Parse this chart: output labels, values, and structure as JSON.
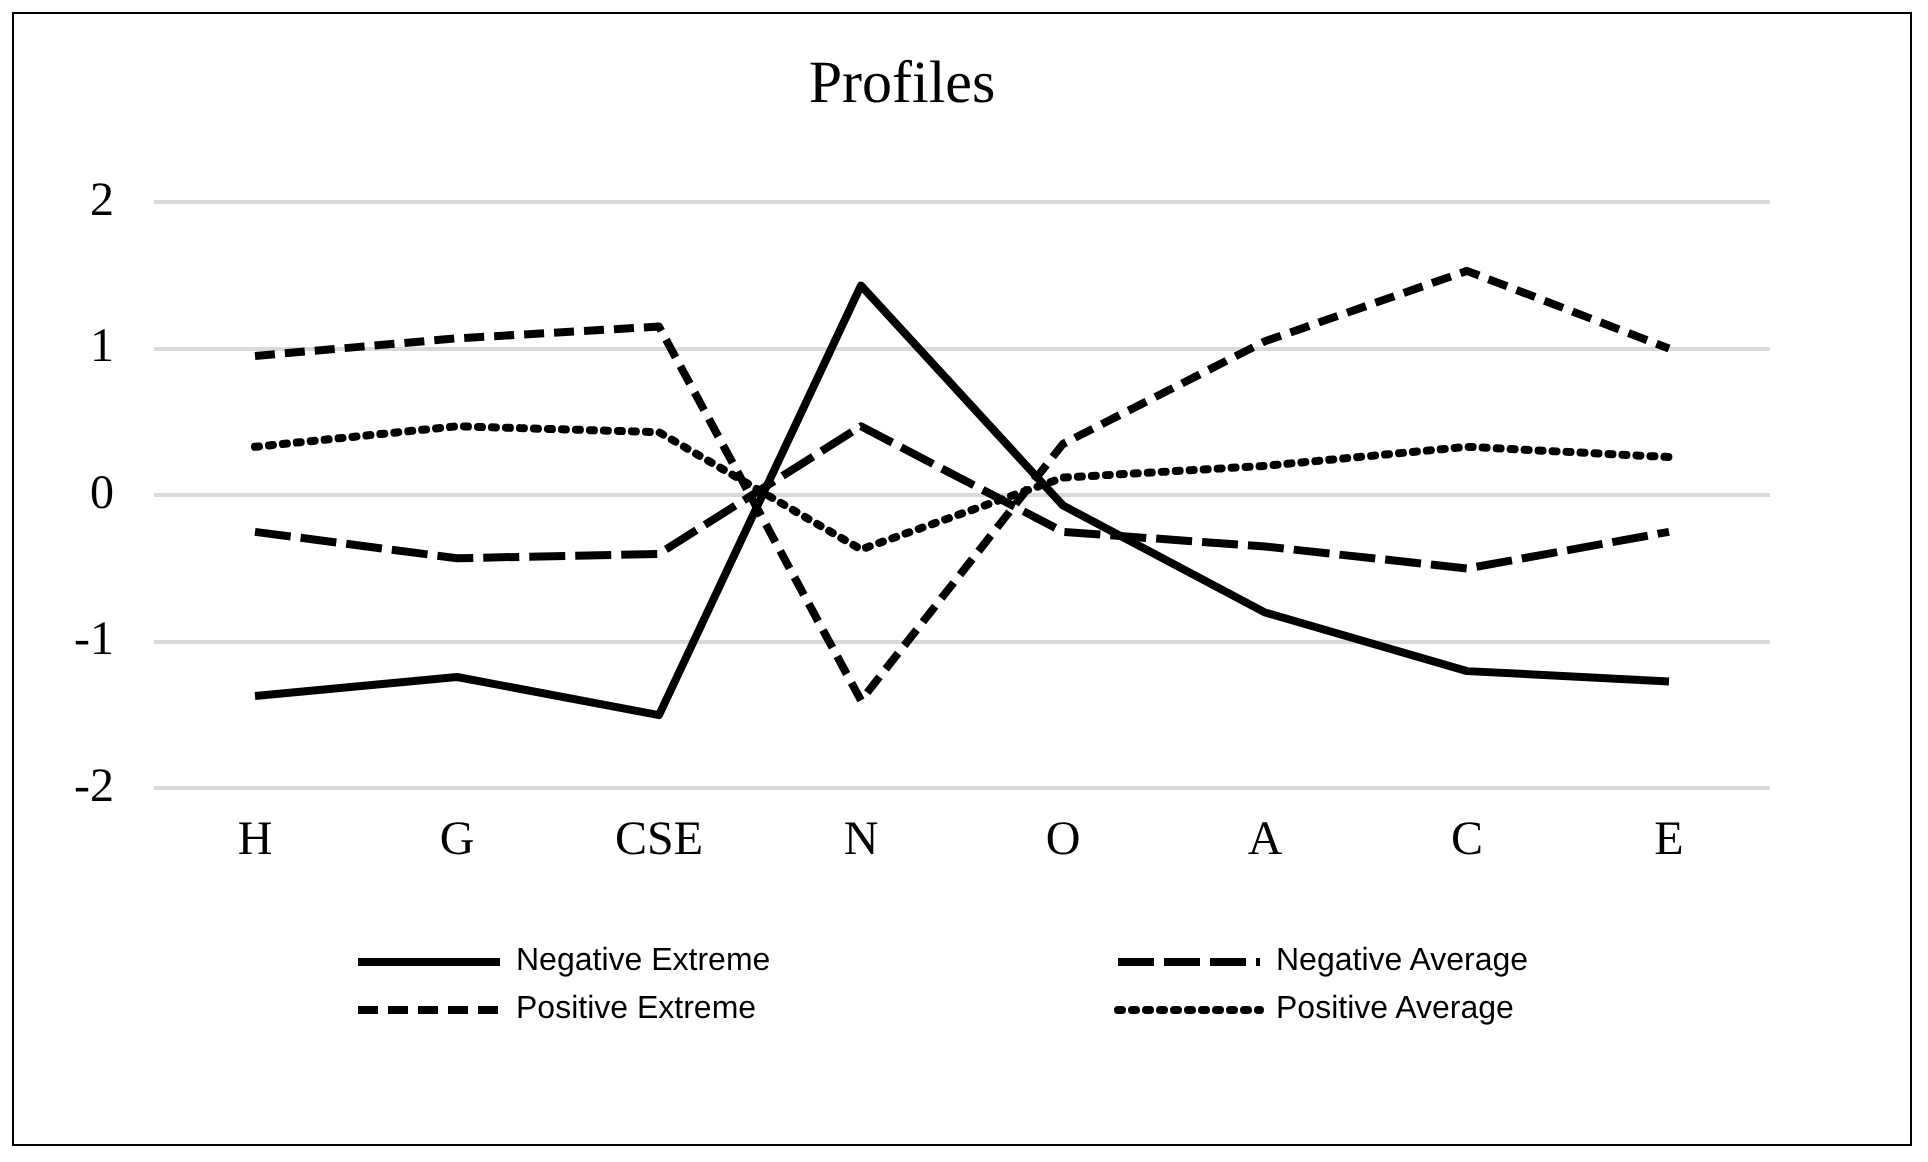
{
  "chart_data": {
    "type": "line",
    "title": "Profiles",
    "categories": [
      "H",
      "G",
      "CSE",
      "N",
      "O",
      "A",
      "C",
      "E"
    ],
    "series": [
      {
        "name": "Negative Extreme",
        "color": "#000000",
        "line_style": "solid",
        "values": [
          -1.37,
          -1.24,
          -1.5,
          1.43,
          -0.07,
          -0.8,
          -1.2,
          -1.27
        ]
      },
      {
        "name": "Negative Average",
        "color": "#000000",
        "line_style": "longdash",
        "values": [
          -0.25,
          -0.43,
          -0.4,
          0.47,
          -0.25,
          -0.35,
          -0.5,
          -0.25
        ]
      },
      {
        "name": "Positive Extreme",
        "color": "#000000",
        "line_style": "dashed",
        "values": [
          0.95,
          1.07,
          1.15,
          -1.4,
          0.35,
          1.05,
          1.53,
          1.0
        ]
      },
      {
        "name": "Positive Average",
        "color": "#000000",
        "line_style": "dotted",
        "values": [
          0.33,
          0.47,
          0.43,
          -0.37,
          0.12,
          0.2,
          0.33,
          0.26
        ]
      }
    ],
    "ylim": [
      -2,
      2
    ],
    "yticks": [
      -2,
      -1,
      0,
      1,
      2
    ],
    "grid": "y",
    "legend": "bottom",
    "marker": "none"
  }
}
